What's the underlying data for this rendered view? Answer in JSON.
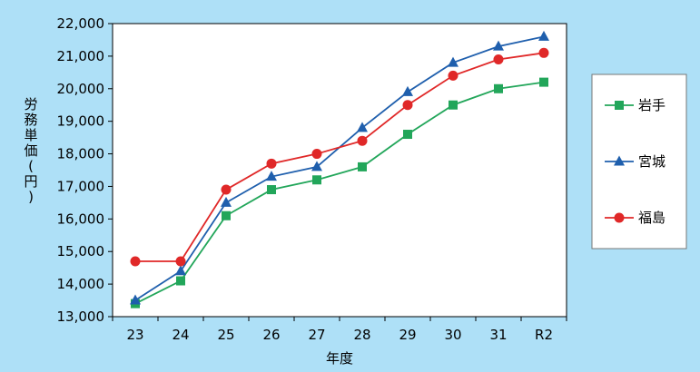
{
  "chart_data": {
    "type": "line",
    "categories": [
      "23",
      "24",
      "25",
      "26",
      "27",
      "28",
      "29",
      "30",
      "31",
      "R2"
    ],
    "series": [
      {
        "name": "岩手",
        "color": "#22a65a",
        "marker": "square",
        "values": [
          13400,
          14100,
          16100,
          16900,
          17200,
          17600,
          18600,
          19500,
          20000,
          20200
        ]
      },
      {
        "name": "宮城",
        "color": "#1f5fad",
        "marker": "triangle",
        "values": [
          13500,
          14400,
          16500,
          17300,
          17600,
          18800,
          19900,
          20800,
          21300,
          21600
        ]
      },
      {
        "name": "福島",
        "color": "#e02828",
        "marker": "circle",
        "values": [
          14700,
          14700,
          16900,
          17700,
          18000,
          18400,
          19500,
          20400,
          20900,
          21100
        ]
      }
    ],
    "ylim": [
      13000,
      22000
    ],
    "y_ticks": [
      "13,000",
      "14,000",
      "15,000",
      "16,000",
      "17,000",
      "18,000",
      "19,000",
      "20,000",
      "21,000",
      "22,000"
    ],
    "xlabel": "年度",
    "ylabel": "労務単価(円)",
    "legend": "right",
    "grid": false,
    "background_color": "#aee0f7"
  }
}
